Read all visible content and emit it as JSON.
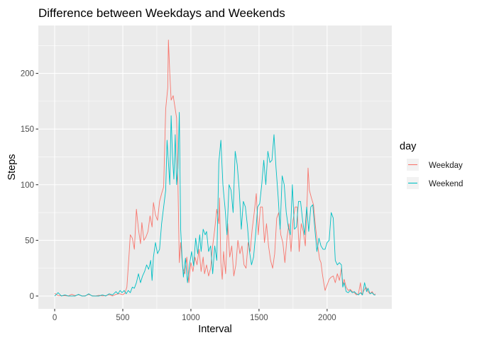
{
  "chart_data": {
    "type": "line",
    "title": "Difference between Weekdays and Weekends",
    "xlabel": "Interval",
    "ylabel": "Steps",
    "xlim": [
      -120,
      2475
    ],
    "ylim": [
      -11.5,
      243
    ],
    "x_ticks": [
      0,
      500,
      1000,
      1500,
      2000
    ],
    "y_ticks": [
      0,
      50,
      100,
      150,
      200
    ],
    "x_tick_labels": [
      "0",
      "500",
      "1000",
      "1500",
      "2000"
    ],
    "y_tick_labels": [
      "0",
      "50",
      "100",
      "150",
      "200"
    ],
    "grid": true,
    "legend": {
      "title": "day",
      "position": "right"
    },
    "series": [
      {
        "name": "Weekday",
        "color": "#F8766D",
        "points": [
          [
            0,
            2.3
          ],
          [
            25,
            0.5
          ],
          [
            50,
            0.2
          ],
          [
            75,
            0.2
          ],
          [
            100,
            0.1
          ],
          [
            125,
            1.5
          ],
          [
            150,
            0.4
          ],
          [
            175,
            1.1
          ],
          [
            200,
            0.1
          ],
          [
            225,
            0.2
          ],
          [
            250,
            1.4
          ],
          [
            275,
            0.2
          ],
          [
            300,
            0.1
          ],
          [
            325,
            0.6
          ],
          [
            350,
            0.1
          ],
          [
            375,
            0.4
          ],
          [
            400,
            1.2
          ],
          [
            425,
            0.1
          ],
          [
            450,
            1.5
          ],
          [
            475,
            2.1
          ],
          [
            500,
            1.2
          ],
          [
            515,
            2.5
          ],
          [
            530,
            8
          ],
          [
            545,
            35
          ],
          [
            555,
            55
          ],
          [
            570,
            52
          ],
          [
            585,
            42
          ],
          [
            600,
            78
          ],
          [
            615,
            60
          ],
          [
            630,
            47
          ],
          [
            640,
            66
          ],
          [
            655,
            50
          ],
          [
            670,
            53
          ],
          [
            685,
            58
          ],
          [
            700,
            72
          ],
          [
            715,
            62
          ],
          [
            725,
            84
          ],
          [
            740,
            73
          ],
          [
            755,
            68
          ],
          [
            770,
            85
          ],
          [
            785,
            92
          ],
          [
            800,
            98
          ],
          [
            815,
            168
          ],
          [
            830,
            187
          ],
          [
            835,
            230
          ],
          [
            845,
            200
          ],
          [
            855,
            176
          ],
          [
            870,
            180
          ],
          [
            885,
            168
          ],
          [
            895,
            160
          ],
          [
            905,
            100
          ],
          [
            915,
            30
          ],
          [
            925,
            48
          ],
          [
            940,
            25
          ],
          [
            955,
            20
          ],
          [
            970,
            35
          ],
          [
            985,
            12
          ],
          [
            1000,
            30
          ],
          [
            1015,
            22
          ],
          [
            1030,
            35
          ],
          [
            1045,
            28
          ],
          [
            1060,
            42
          ],
          [
            1075,
            22
          ],
          [
            1090,
            35
          ],
          [
            1100,
            20
          ],
          [
            1115,
            28
          ],
          [
            1130,
            18
          ],
          [
            1145,
            25
          ],
          [
            1160,
            45
          ],
          [
            1175,
            60
          ],
          [
            1190,
            78
          ],
          [
            1205,
            65
          ],
          [
            1210,
            88
          ],
          [
            1220,
            30
          ],
          [
            1230,
            15
          ],
          [
            1240,
            40
          ],
          [
            1255,
            20
          ],
          [
            1270,
            65
          ],
          [
            1285,
            35
          ],
          [
            1300,
            45
          ],
          [
            1315,
            18
          ],
          [
            1330,
            28
          ],
          [
            1345,
            50
          ],
          [
            1360,
            38
          ],
          [
            1375,
            45
          ],
          [
            1390,
            28
          ],
          [
            1405,
            25
          ],
          [
            1420,
            48
          ],
          [
            1435,
            40
          ],
          [
            1450,
            60
          ],
          [
            1465,
            75
          ],
          [
            1480,
            92
          ],
          [
            1495,
            55
          ],
          [
            1510,
            80
          ],
          [
            1525,
            80
          ],
          [
            1540,
            48
          ],
          [
            1555,
            65
          ],
          [
            1570,
            45
          ],
          [
            1585,
            32
          ],
          [
            1600,
            25
          ],
          [
            1615,
            38
          ],
          [
            1630,
            70
          ],
          [
            1645,
            75
          ],
          [
            1660,
            55
          ],
          [
            1675,
            48
          ],
          [
            1690,
            30
          ],
          [
            1705,
            52
          ],
          [
            1720,
            65
          ],
          [
            1735,
            40
          ],
          [
            1750,
            68
          ],
          [
            1765,
            80
          ],
          [
            1780,
            80
          ],
          [
            1795,
            40
          ],
          [
            1810,
            65
          ],
          [
            1825,
            58
          ],
          [
            1840,
            45
          ],
          [
            1855,
            92
          ],
          [
            1860,
            115
          ],
          [
            1870,
            95
          ],
          [
            1885,
            88
          ],
          [
            1900,
            82
          ],
          [
            1915,
            62
          ],
          [
            1930,
            46
          ],
          [
            1945,
            33
          ],
          [
            1955,
            30
          ],
          [
            1965,
            20
          ],
          [
            1975,
            12
          ],
          [
            1985,
            5
          ],
          [
            2000,
            10
          ],
          [
            2015,
            15
          ],
          [
            2030,
            17
          ],
          [
            2045,
            18
          ],
          [
            2060,
            12
          ],
          [
            2075,
            20
          ],
          [
            2090,
            14
          ],
          [
            2105,
            25
          ],
          [
            2115,
            10
          ],
          [
            2125,
            15
          ],
          [
            2140,
            8
          ],
          [
            2155,
            5
          ],
          [
            2170,
            6
          ],
          [
            2185,
            4
          ],
          [
            2200,
            3
          ],
          [
            2215,
            1
          ],
          [
            2230,
            2
          ],
          [
            2245,
            12
          ],
          [
            2255,
            1
          ],
          [
            2270,
            5
          ],
          [
            2285,
            8
          ],
          [
            2300,
            4
          ],
          [
            2315,
            2
          ],
          [
            2330,
            4
          ],
          [
            2345,
            1
          ],
          [
            2355,
            2
          ]
        ]
      },
      {
        "name": "Weekend",
        "color": "#00BFC4",
        "points": [
          [
            0,
            0
          ],
          [
            25,
            3
          ],
          [
            50,
            0
          ],
          [
            75,
            1
          ],
          [
            100,
            0
          ],
          [
            125,
            0
          ],
          [
            150,
            0
          ],
          [
            175,
            1.5
          ],
          [
            200,
            0
          ],
          [
            225,
            0
          ],
          [
            250,
            2
          ],
          [
            275,
            0
          ],
          [
            300,
            0
          ],
          [
            325,
            0
          ],
          [
            350,
            1
          ],
          [
            375,
            0
          ],
          [
            400,
            2
          ],
          [
            425,
            1
          ],
          [
            450,
            4
          ],
          [
            465,
            2
          ],
          [
            480,
            5
          ],
          [
            495,
            3
          ],
          [
            510,
            5
          ],
          [
            525,
            2
          ],
          [
            540,
            5
          ],
          [
            555,
            3
          ],
          [
            570,
            8
          ],
          [
            585,
            7
          ],
          [
            600,
            12
          ],
          [
            615,
            20
          ],
          [
            630,
            12
          ],
          [
            645,
            18
          ],
          [
            660,
            22
          ],
          [
            675,
            28
          ],
          [
            690,
            24
          ],
          [
            705,
            32
          ],
          [
            715,
            14
          ],
          [
            725,
            35
          ],
          [
            740,
            48
          ],
          [
            755,
            38
          ],
          [
            770,
            42
          ],
          [
            785,
            65
          ],
          [
            800,
            80
          ],
          [
            815,
            95
          ],
          [
            825,
            140
          ],
          [
            835,
            120
          ],
          [
            845,
            100
          ],
          [
            855,
            162
          ],
          [
            865,
            125
          ],
          [
            875,
            105
          ],
          [
            885,
            145
          ],
          [
            895,
            100
          ],
          [
            905,
            115
          ],
          [
            915,
            165
          ],
          [
            925,
            60
          ],
          [
            935,
            35
          ],
          [
            945,
            17
          ],
          [
            960,
            34
          ],
          [
            975,
            12
          ],
          [
            990,
            28
          ],
          [
            1005,
            40
          ],
          [
            1020,
            27
          ],
          [
            1035,
            52
          ],
          [
            1050,
            38
          ],
          [
            1065,
            55
          ],
          [
            1075,
            40
          ],
          [
            1090,
            60
          ],
          [
            1105,
            55
          ],
          [
            1115,
            58
          ],
          [
            1130,
            40
          ],
          [
            1145,
            45
          ],
          [
            1160,
            20
          ],
          [
            1175,
            45
          ],
          [
            1190,
            32
          ],
          [
            1205,
            120
          ],
          [
            1220,
            140
          ],
          [
            1235,
            100
          ],
          [
            1250,
            80
          ],
          [
            1265,
            55
          ],
          [
            1280,
            100
          ],
          [
            1295,
            95
          ],
          [
            1310,
            75
          ],
          [
            1325,
            130
          ],
          [
            1340,
            118
          ],
          [
            1355,
            95
          ],
          [
            1370,
            60
          ],
          [
            1385,
            85
          ],
          [
            1400,
            80
          ],
          [
            1415,
            63
          ],
          [
            1430,
            40
          ],
          [
            1445,
            28
          ],
          [
            1460,
            35
          ],
          [
            1475,
            55
          ],
          [
            1490,
            80
          ],
          [
            1505,
            83
          ],
          [
            1520,
            100
          ],
          [
            1535,
            122
          ],
          [
            1550,
            100
          ],
          [
            1565,
            130
          ],
          [
            1580,
            120
          ],
          [
            1595,
            122
          ],
          [
            1610,
            145
          ],
          [
            1625,
            115
          ],
          [
            1640,
            90
          ],
          [
            1655,
            60
          ],
          [
            1670,
            108
          ],
          [
            1685,
            100
          ],
          [
            1700,
            75
          ],
          [
            1715,
            62
          ],
          [
            1730,
            55
          ],
          [
            1745,
            100
          ],
          [
            1760,
            60
          ],
          [
            1775,
            62
          ],
          [
            1790,
            85
          ],
          [
            1805,
            85
          ],
          [
            1820,
            68
          ],
          [
            1835,
            55
          ],
          [
            1850,
            80
          ],
          [
            1865,
            58
          ],
          [
            1880,
            80
          ],
          [
            1895,
            82
          ],
          [
            1910,
            60
          ],
          [
            1925,
            40
          ],
          [
            1940,
            52
          ],
          [
            1955,
            45
          ],
          [
            1970,
            42
          ],
          [
            1985,
            42
          ],
          [
            2000,
            48
          ],
          [
            2015,
            50
          ],
          [
            2030,
            75
          ],
          [
            2045,
            70
          ],
          [
            2060,
            32
          ],
          [
            2075,
            28
          ],
          [
            2090,
            30
          ],
          [
            2105,
            28
          ],
          [
            2115,
            8
          ],
          [
            2125,
            12
          ],
          [
            2140,
            4
          ],
          [
            2155,
            3
          ],
          [
            2170,
            5
          ],
          [
            2185,
            3
          ],
          [
            2200,
            4
          ],
          [
            2215,
            2
          ],
          [
            2230,
            1
          ],
          [
            2245,
            3
          ],
          [
            2260,
            1
          ],
          [
            2275,
            12
          ],
          [
            2290,
            4
          ],
          [
            2300,
            7
          ],
          [
            2315,
            2
          ],
          [
            2330,
            3
          ],
          [
            2345,
            1
          ],
          [
            2355,
            1
          ]
        ]
      }
    ]
  }
}
